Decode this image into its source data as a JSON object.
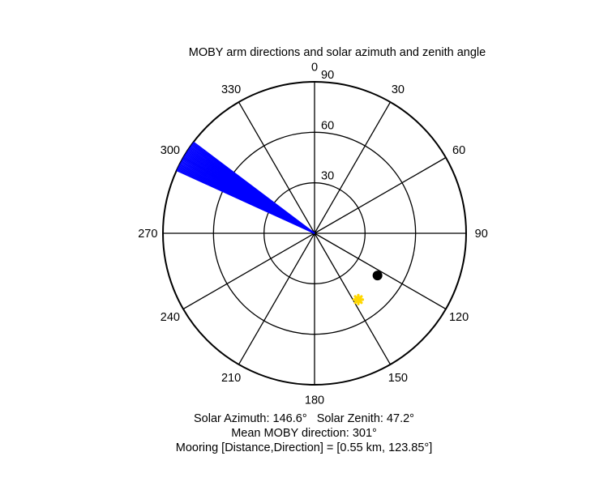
{
  "chart_data": {
    "type": "polar",
    "title": "MOBY arm directions and solar azimuth and zenith angle",
    "angle_zero": "top",
    "angle_direction": "clockwise",
    "angle_ticks": [
      0,
      30,
      60,
      90,
      120,
      150,
      180,
      210,
      240,
      270,
      300,
      330
    ],
    "radius_range": [
      0,
      90
    ],
    "radius_ticks": [
      30,
      60,
      90
    ],
    "grid": true,
    "series": [
      {
        "marker": "line",
        "color": "#0000ff",
        "angles_deg": [
          294.5,
          295.0,
          295.5,
          296.0,
          296.5,
          297.0,
          297.5,
          298.0,
          298.5,
          299.0,
          299.5,
          300.0,
          300.5,
          301.0,
          301.5,
          302.0,
          302.5,
          303.0,
          303.5,
          304.0,
          304.5,
          305.0,
          305.5,
          306.0,
          306.5,
          307.0
        ],
        "radius": 90
      },
      {
        "marker": "circle",
        "color": "#000000",
        "angle_deg": 123.85,
        "radius": 45
      },
      {
        "marker": "star",
        "color": "#ffd700",
        "angle_deg": 146.6,
        "radius": 47.2
      }
    ],
    "annotations": [
      "Solar Azimuth: 146.6°   Solar Zenith: 47.2°",
      "Mean MOBY direction: 301°",
      "Mooring [Distance,Direction] = [0.55 km, 123.85°]"
    ]
  }
}
